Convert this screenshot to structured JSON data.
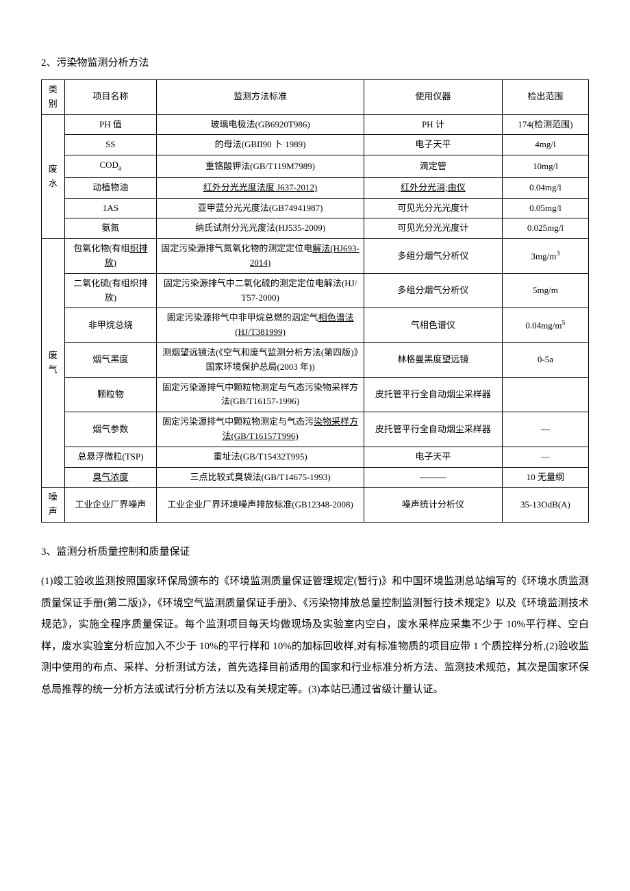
{
  "section2": {
    "title": "2、污染物监测分析方法",
    "headers": {
      "category": "类别",
      "name": "项目名称",
      "method": "监测方法标准",
      "instrument": "使用仪器",
      "range": "检出范围"
    },
    "groups": [
      {
        "category": "废水",
        "rows": [
          {
            "name": "PH 值",
            "method": "玻璃电极法(GB6920T986)",
            "instrument": "PH 计",
            "range": "174(检测范围)"
          },
          {
            "name": "SS",
            "method": "的母法(GBII90 卜 1989)",
            "instrument": "电子天平",
            "range": "4mg/l"
          },
          {
            "name": "CODₐ",
            "name_html": "COD<span class='sub'>a</span>",
            "method": "重铬酸钾法(GB/T119M7989)",
            "instrument": "滴定管",
            "range": "10mg/l"
          },
          {
            "name": "动植物油",
            "method_html": "<span class='underline'>红外分光光度法度 J637-2012)</span>",
            "instrument_html": "<span class='underline'>红外分光消;由仪</span>",
            "range": "0.04mg/l"
          },
          {
            "name": "1AS",
            "method": "亚甲蓝分光光度法(GB74941987)",
            "instrument": "可见光分光光度计",
            "range": "0.05mg/l"
          },
          {
            "name": "氨氮",
            "method": "纳氏试剂分光光度法(HJ535-2009)",
            "instrument": "可见光分光光度计",
            "range": "0.025mg/l"
          }
        ]
      },
      {
        "category": "废气",
        "rows": [
          {
            "name_html": "包氧化物(有组<span class='underline'>织排放)</span>",
            "method_html": "固定污染源排气氮氧化物的测定定位电<span class='underline'>解法(HJ693-2014)</span>",
            "instrument": "多组分烟气分析仪",
            "range_html": "3mg/m<span class='sup'>3</span>"
          },
          {
            "name": "二氧化硫(有组织排放)",
            "method": "固定污染源排气中二氧化硫的测定定位电解法(HJ/T57-2000)",
            "instrument": "多组分烟气分析仪",
            "range": "5mg/m"
          },
          {
            "name": "非甲烷总烧",
            "method_html": "固定污染源排气中非甲烷总燃的泅定气<span class='underline'>相色谱法 (HJ/T381999)</span>",
            "instrument": "气相色谱仪",
            "range_html": "0.04mg/m<span class='sup'>5</span>"
          },
          {
            "name": "烟气黑度",
            "method": "测烟望远镜法(《空气和废气监测分析方法(第四版)》国家环境保护总局(2003 年))",
            "instrument": "林格曼黑度望远镜",
            "range": "0-5a"
          },
          {
            "name": "颗粒物",
            "method": "固定污染源排气中颗粒物测定与气态污染物采样方法(GB/T16157-1996)",
            "instrument": "皮托管平行全自动烟尘采样器",
            "range": ""
          },
          {
            "name": "烟气参数",
            "method_html": "固定污染源排气中颗粒物测定与气态污<span class='underline'>染物采样方法(GB/T16157T996)</span>",
            "instrument": "皮托管平行全自动烟尘采样器",
            "range": "—"
          },
          {
            "name": "总悬浮微粒(TSP)",
            "method": "重址法(GB/T15432T995)",
            "instrument": "电子天平",
            "range": "—"
          },
          {
            "name_html": "<span class='underline'>臭气浓度</span>",
            "method": "三点比较式臭袋法(GB/T14675-1993)",
            "instrument": "———",
            "range": "10 无量纲"
          }
        ]
      },
      {
        "category": "噪声",
        "rows": [
          {
            "name": "工业企业厂界噪声",
            "method": "工业企业厂界环境噪声排放标准(GB12348-2008)",
            "instrument": "噪声统计分析仪",
            "range": "35-13OdB(A)"
          }
        ]
      }
    ]
  },
  "section3": {
    "title": "3、监测分析质量控制和质量保证",
    "body": "(1)竣工验收监测按照国家环保局颁布的《环境监测质量保证管理规定(暂行)》和中国环境监测总站编写的《环境水质监测质量保证手册(第二版)》，《环境空气监测质量保证手册》、《污染物排放总量控制监测暂行技术规定》以及《环境监测技术规范》，实施全程序质量保证。每个监测项目每天均做现场及实验室内空白，废水采样应采集不少于 10%平行样、空白样，废水实验室分析应加入不少于 10%的平行样和 10%的加标回收样,对有标准物质的项目应带 1 个质控样分析,(2)验收监测中使用的布点、采样、分析测试方法，首先选择目前适用的国家和行业标准分析方法、监测技术规范，其次是国家环保总局推荐的统一分析方法或试行分析方法以及有关规定等。(3)本站已通过省级计量认证。"
  }
}
